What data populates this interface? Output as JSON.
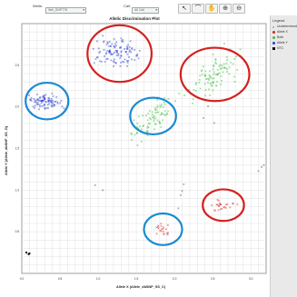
{
  "toolbar": {
    "well_label": "Wells:",
    "well_value": "Wel_SNP778",
    "call_label": "Call:",
    "call_value": "All Call",
    "tools": [
      {
        "name": "pointer-icon",
        "glyph": "↖"
      },
      {
        "name": "lasso-icon",
        "glyph": "⌒"
      },
      {
        "name": "hand-icon",
        "glyph": "✋"
      },
      {
        "name": "zoom-in-icon",
        "glyph": "⊕"
      },
      {
        "name": "zoom-out-icon",
        "glyph": "⊖"
      }
    ]
  },
  "chart_data": {
    "type": "scatter",
    "title": "Allelic Discrimination Plot",
    "xlabel": "Allele X (Allele_dbSNP_SS_C)",
    "ylabel": "Allele Y (Allele_dbSNP_SS_G)",
    "xlim": [
      0,
      3.2
    ],
    "ylim": [
      0,
      3.0
    ],
    "xticks": [
      "0.0",
      "0.5",
      "1.0",
      "1.5",
      "2.0",
      "2.5",
      "3.0"
    ],
    "yticks": [
      "0.5",
      "1.0",
      "1.5",
      "2.0",
      "2.5"
    ],
    "grid": true,
    "clusters": [
      {
        "series": "Allele Y",
        "center": [
          1.25,
          2.65
        ],
        "spread": [
          0.13,
          0.08
        ],
        "n": 110
      },
      {
        "series": "Allele Y",
        "center": [
          0.33,
          2.07
        ],
        "spread": [
          0.1,
          0.045
        ],
        "n": 90
      },
      {
        "series": "Both",
        "center": [
          2.53,
          2.4
        ],
        "spread": [
          0.15,
          0.11
        ],
        "n": 95,
        "tilt": 0.6
      },
      {
        "series": "Both",
        "center": [
          1.73,
          1.89
        ],
        "spread": [
          0.13,
          0.09
        ],
        "n": 80,
        "tilt": 0.65
      },
      {
        "series": "Allele X",
        "center": [
          1.86,
          0.53
        ],
        "spread": [
          0.06,
          0.04
        ],
        "n": 20
      },
      {
        "series": "Allele X",
        "center": [
          2.62,
          0.82
        ],
        "spread": [
          0.08,
          0.04
        ],
        "n": 25
      }
    ],
    "undetermined": [
      [
        2.12,
        1.07
      ],
      [
        2.38,
        1.87
      ],
      [
        2.44,
        2.01
      ],
      [
        2.52,
        1.81
      ],
      [
        3.1,
        1.23
      ],
      [
        3.14,
        1.28
      ],
      [
        3.17,
        1.3
      ],
      [
        1.06,
        1.0
      ],
      [
        0.96,
        1.06
      ],
      [
        2.05,
        0.78
      ],
      [
        2.08,
        0.94
      ],
      [
        2.1,
        0.99
      ]
    ],
    "ntc": [
      [
        0.06,
        0.25
      ],
      [
        0.09,
        0.23
      ],
      [
        0.1,
        0.24
      ]
    ],
    "circles": [
      {
        "color": "#d42020",
        "center": [
          1.28,
          2.64
        ],
        "r": [
          0.42,
          0.34
        ]
      },
      {
        "color": "#d42020",
        "center": [
          2.53,
          2.39
        ],
        "r": [
          0.45,
          0.32
        ]
      },
      {
        "color": "#1a8ad4",
        "center": [
          0.33,
          2.07
        ],
        "r": [
          0.28,
          0.22
        ]
      },
      {
        "color": "#1a8ad4",
        "center": [
          1.72,
          1.89
        ],
        "r": [
          0.3,
          0.22
        ]
      },
      {
        "color": "#1a8ad4",
        "center": [
          1.85,
          0.53
        ],
        "r": [
          0.25,
          0.19
        ]
      },
      {
        "color": "#d42020",
        "center": [
          2.64,
          0.82
        ],
        "r": [
          0.27,
          0.19
        ]
      }
    ]
  },
  "legend": {
    "title": "Legend",
    "items": [
      {
        "label": "Undetermined",
        "color": "#333333",
        "shape": "x"
      },
      {
        "label": "Allele X",
        "color": "#e02020",
        "shape": "dot"
      },
      {
        "label": "Both",
        "color": "#40c040",
        "shape": "dot"
      },
      {
        "label": "Allele Y",
        "color": "#2040e0",
        "shape": "dot"
      },
      {
        "label": "NTC",
        "color": "#111111",
        "shape": "square"
      }
    ]
  },
  "colors": {
    "allele_y": "#2a3fd0",
    "both": "#3fbf3f",
    "allele_x": "#d83030",
    "undetermined": "#555555",
    "ntc": "#111111"
  }
}
